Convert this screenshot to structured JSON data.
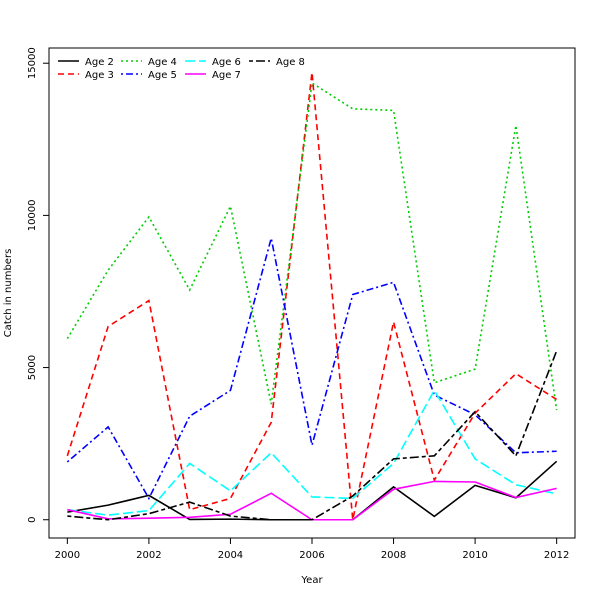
{
  "chart_data": {
    "type": "line",
    "title": "",
    "xlabel": "Year",
    "ylabel": "Catch in numbers",
    "xlim": [
      1999.55,
      2012.45
    ],
    "ylim": [
      -600,
      15500
    ],
    "x_ticks": [
      2000,
      2002,
      2004,
      2006,
      2008,
      2010,
      2012
    ],
    "y_ticks": [
      0,
      5000,
      10000,
      15000
    ],
    "grid": false,
    "legend_position": "top-left",
    "x": [
      2000,
      2001,
      2002,
      2003,
      2004,
      2005,
      2006,
      2007,
      2008,
      2009,
      2010,
      2011,
      2012
    ],
    "series": [
      {
        "name": "Age 2",
        "color": "#000000",
        "dash": "solid",
        "values": [
          250,
          480,
          800,
          10,
          20,
          0,
          0,
          0,
          1080,
          110,
          1130,
          720,
          1920
        ]
      },
      {
        "name": "Age 3",
        "color": "#ff0000",
        "dash": "dashed",
        "values": [
          2100,
          6350,
          7200,
          330,
          700,
          3200,
          14700,
          0,
          6500,
          1300,
          3500,
          4800,
          3950
        ]
      },
      {
        "name": "Age 4",
        "color": "#00cd00",
        "dash": "dotted",
        "values": [
          5950,
          8200,
          9950,
          7550,
          10300,
          3800,
          14350,
          13500,
          13450,
          4500,
          4950,
          12950,
          3600
        ]
      },
      {
        "name": "Age 5",
        "color": "#0000ff",
        "dash": "dotdash",
        "values": [
          1900,
          3050,
          700,
          3400,
          4250,
          9250,
          2450,
          7400,
          7800,
          4100,
          3450,
          2200,
          2250
        ]
      },
      {
        "name": "Age 6",
        "color": "#00ffff",
        "dash": "longdash",
        "values": [
          330,
          150,
          300,
          1850,
          950,
          2200,
          750,
          700,
          1850,
          4250,
          2000,
          1150,
          850
        ]
      },
      {
        "name": "Age 7",
        "color": "#ff00ff",
        "dash": "solid",
        "values": [
          330,
          30,
          50,
          80,
          180,
          870,
          0,
          0,
          1000,
          1260,
          1240,
          730,
          1030
        ]
      },
      {
        "name": "Age 8",
        "color": "#000000",
        "dash": "twodash",
        "values": [
          120,
          0,
          200,
          580,
          120,
          0,
          0,
          780,
          2000,
          2100,
          3550,
          2100,
          5550
        ]
      }
    ]
  }
}
